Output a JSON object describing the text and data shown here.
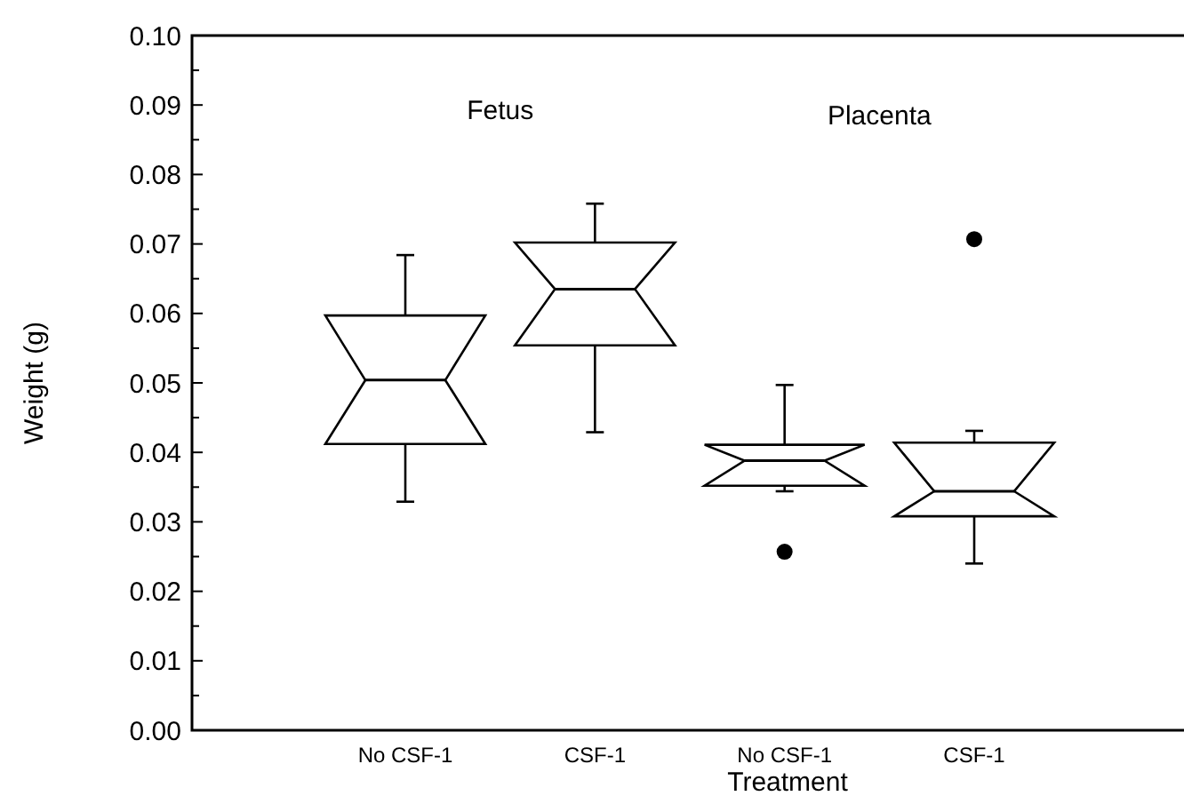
{
  "chart_data": {
    "type": "box",
    "xlabel": "Treatment",
    "ylabel": "Weight (g)",
    "categories": [
      "No CSF-1",
      "CSF-1",
      "No CSF-1",
      "CSF-1"
    ],
    "boxes": [
      {
        "low": 0.0329,
        "q1": 0.0412,
        "median": 0.0504,
        "q3": 0.0597,
        "high": 0.0684
      },
      {
        "low": 0.0429,
        "q1": 0.0554,
        "median": 0.0635,
        "q3": 0.0702,
        "high": 0.0758
      },
      {
        "low": 0.0344,
        "q1": 0.0352,
        "median": 0.0388,
        "q3": 0.0411,
        "high": 0.0497,
        "outliers": [
          0.0257
        ]
      },
      {
        "low": 0.024,
        "q1": 0.0308,
        "median": 0.0344,
        "q3": 0.0414,
        "high": 0.0431,
        "outliers": [
          0.0707
        ]
      }
    ],
    "ylim": [
      0,
      0.1
    ],
    "yticks": [
      {
        "value": 0,
        "label": "0.00"
      },
      {
        "value": 0.01,
        "label": "0.01"
      },
      {
        "value": 0.02,
        "label": "0.02"
      },
      {
        "value": 0.03,
        "label": "0.03"
      },
      {
        "value": 0.04,
        "label": "0.04"
      },
      {
        "value": 0.05,
        "label": "0.05"
      },
      {
        "value": 0.06,
        "label": "0.06"
      },
      {
        "value": 0.07,
        "label": "0.07"
      },
      {
        "value": 0.08,
        "label": "0.08"
      },
      {
        "value": 0.09,
        "label": "0.09"
      },
      {
        "value": 0.1,
        "label": "0.10"
      }
    ],
    "annotations": [
      "Fetus",
      "Placenta"
    ],
    "grid": false
  }
}
